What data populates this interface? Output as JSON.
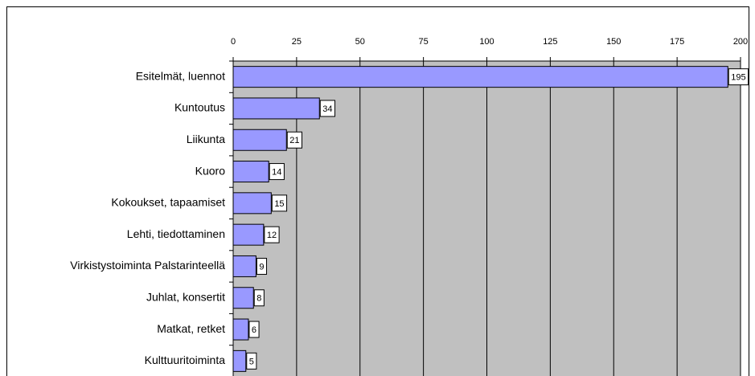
{
  "chart_data": {
    "type": "bar",
    "categories": [
      "Esitelmät, luennot",
      "Kuntoutus",
      "Liikunta",
      "Kuoro",
      "Kokoukset, tapaamiset",
      "Lehti, tiedottaminen",
      "Virkistystoiminta Palstarinteellä",
      "Juhlat, konsertit",
      "Matkat, retket",
      "Kulttuuritoiminta"
    ],
    "values": [
      195,
      34,
      21,
      14,
      15,
      12,
      9,
      8,
      6,
      5
    ],
    "color": "#9999ff",
    "xlim": [
      0,
      200
    ],
    "xticks": [
      0,
      25,
      50,
      75,
      100,
      125,
      150,
      175,
      200
    ],
    "grid": true
  }
}
